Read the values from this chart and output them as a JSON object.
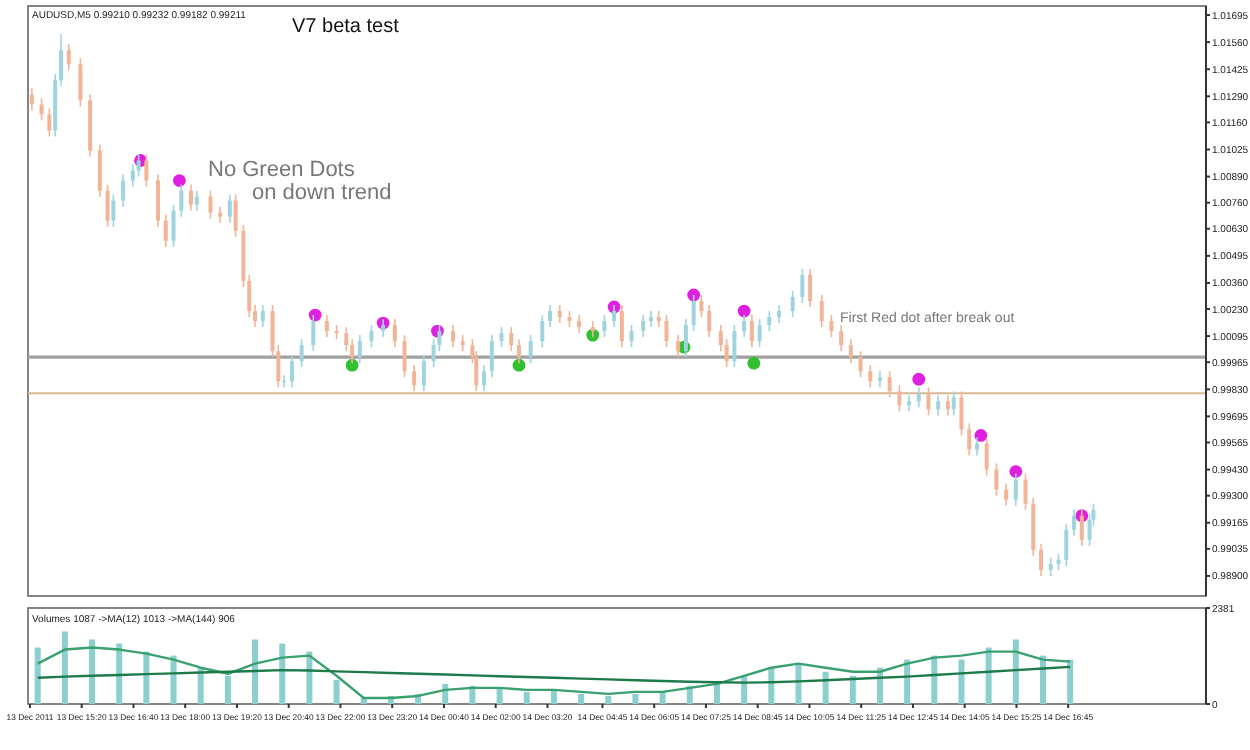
{
  "chart_data": [
    {
      "type": "candlestick",
      "title": "V7 beta test",
      "subtitle": "AUDUSD,M5 0.99210 0.99232 0.99182 0.99211",
      "annotations": [
        "No Green Dots on down trend",
        "First Red dot after break out"
      ],
      "colors": [
        "#f2b497",
        "#f2b497",
        "#f2b497",
        "#9fd3df",
        "#9fd3df",
        "#f2b497",
        "#f2b497",
        "#f2b497",
        "#f2b497",
        "#f2b497",
        "#9fd3df",
        "#9fd3df",
        "#9fd3df",
        "#9fd3df",
        "#f2b497",
        "#f2b497",
        "#f2b497",
        "#9fd3df",
        "#9fd3df",
        "#f2b497",
        "#9fd3df",
        "#f2b497",
        "#f2b497",
        "#9fd3df",
        "#f2b497",
        "#f2b497",
        "#f2b497",
        "#f2b497",
        "#9fd3df",
        "#f2b497",
        "#f2b497",
        "#9fd3df",
        "#9fd3df",
        "#9fd3df",
        "#9fd3df",
        "#f2b497",
        "#f2b497",
        "#f2b497",
        "#f2b497",
        "#9fd3df",
        "#9fd3df",
        "#9fd3df",
        "#f2b497",
        "#f2b497",
        "#f2b497",
        "#9fd3df",
        "#9fd3df",
        "#9fd3df",
        "#f2b497",
        "#f2b497",
        "#f2b497",
        "#f2b497",
        "#9fd3df",
        "#9fd3df",
        "#9fd3df",
        "#f2b497",
        "#f2b497",
        "#9fd3df",
        "#9fd3df",
        "#9fd3df",
        "#f2b497",
        "#f2b497",
        "#f2b497",
        "#f2b497",
        "#9fd3df",
        "#9fd3df",
        "#f2b497",
        "#9fd3df",
        "#9fd3df",
        "#9fd3df",
        "#f2b497",
        "#f2b497",
        "#f2b497",
        "#9fd3df",
        "#9fd3df",
        "#f2b497",
        "#f2b497",
        "#f2b497",
        "#f2b497",
        "#9fd3df",
        "#9fd3df",
        "#f2b497",
        "#9fd3df",
        "#9fd3df",
        "#9fd3df",
        "#9fd3df",
        "#9fd3df",
        "#f2b497",
        "#f2b497",
        "#f2b497",
        "#f2b497",
        "#f2b497",
        "#f2b497",
        "#f2b497",
        "#9fd3df",
        "#f2b497",
        "#f2b497",
        "#9fd3df",
        "#9fd3df",
        "#f2b497",
        "#9fd3df",
        "#f2b497",
        "#9fd3df",
        "#f2b497",
        "#f2b497",
        "#9fd3df",
        "#f2b497",
        "#f2b497",
        "#f2b497",
        "#9fd3df",
        "#f2b497",
        "#f2b497",
        "#f2b497",
        "#9fd3df",
        "#9fd3df",
        "#9fd3df",
        "#9fd3df",
        "#f2b497",
        "#9fd3df",
        "#9fd3df"
      ],
      "x": [
        "2011-12-13T14:03",
        "2011-12-13T14:18",
        "2011-12-13T14:30",
        "2011-12-13T14:39",
        "2011-12-13T14:48",
        "2011-12-13T15:00",
        "2011-12-13T15:18",
        "2011-12-13T15:33",
        "2011-12-13T15:48",
        "2011-12-13T16:00",
        "2011-12-13T16:09",
        "2011-12-13T16:24",
        "2011-12-13T16:39",
        "2011-12-13T16:48",
        "2011-12-13T17:00",
        "2011-12-13T17:18",
        "2011-12-13T17:30",
        "2011-12-13T17:42",
        "2011-12-13T17:54",
        "2011-12-13T18:09",
        "2011-12-13T18:18",
        "2011-12-13T18:39",
        "2011-12-13T18:54",
        "2011-12-13T19:09",
        "2011-12-13T19:18",
        "2011-12-13T19:30",
        "2011-12-13T19:39",
        "2011-12-13T19:48",
        "2011-12-13T20:00",
        "2011-12-13T20:15",
        "2011-12-13T20:24",
        "2011-12-13T20:33",
        "2011-12-13T20:45",
        "2011-12-13T21:00",
        "2011-12-13T21:18",
        "2011-12-13T21:39",
        "2011-12-13T21:54",
        "2011-12-13T22:09",
        "2011-12-13T22:18",
        "2011-12-13T22:30",
        "2011-12-13T22:48",
        "2011-12-13T23:06",
        "2011-12-13T23:24",
        "2011-12-13T23:39",
        "2011-12-13T23:54",
        "2011-12-14T00:09",
        "2011-12-14T00:24",
        "2011-12-14T00:33",
        "2011-12-14T00:54",
        "2011-12-14T01:09",
        "2011-12-14T01:24",
        "2011-12-14T01:30",
        "2011-12-14T01:42",
        "2011-12-14T01:54",
        "2011-12-14T02:09",
        "2011-12-14T02:24",
        "2011-12-14T02:36",
        "2011-12-14T02:54",
        "2011-12-14T03:12",
        "2011-12-14T03:24",
        "2011-12-14T03:39",
        "2011-12-14T03:54",
        "2011-12-14T04:09",
        "2011-12-14T04:30",
        "2011-12-14T04:48",
        "2011-12-14T05:03",
        "2011-12-14T05:15",
        "2011-12-14T05:30",
        "2011-12-14T05:48",
        "2011-12-14T06:00",
        "2011-12-14T06:12",
        "2011-12-14T06:24",
        "2011-12-14T06:42",
        "2011-12-14T06:54",
        "2011-12-14T07:06",
        "2011-12-14T07:18",
        "2011-12-14T07:30",
        "2011-12-14T07:48",
        "2011-12-14T07:57",
        "2011-12-14T08:09",
        "2011-12-14T08:24",
        "2011-12-14T08:36",
        "2011-12-14T08:48",
        "2011-12-14T09:03",
        "2011-12-14T09:18",
        "2011-12-14T09:39",
        "2011-12-14T09:54",
        "2011-12-14T10:06",
        "2011-12-14T10:24",
        "2011-12-14T10:39",
        "2011-12-14T10:54",
        "2011-12-14T11:09",
        "2011-12-14T11:24",
        "2011-12-14T11:39",
        "2011-12-14T11:54",
        "2011-12-14T12:09",
        "2011-12-14T12:24",
        "2011-12-14T12:39",
        "2011-12-14T12:54",
        "2011-12-14T13:09",
        "2011-12-14T13:24",
        "2011-12-14T13:39",
        "2011-12-14T13:48",
        "2011-12-14T14:00",
        "2011-12-14T14:12",
        "2011-12-14T14:24",
        "2011-12-14T14:39",
        "2011-12-14T14:54",
        "2011-12-14T15:09",
        "2011-12-14T15:24",
        "2011-12-14T15:39",
        "2011-12-14T15:51",
        "2011-12-14T16:03",
        "2011-12-14T16:18",
        "2011-12-14T16:30",
        "2011-12-14T16:42",
        "2011-12-14T16:54",
        "2011-12-14T17:06",
        "2011-12-14T17:18",
        "2011-12-14T17:24"
      ],
      "series": [
        {
          "type": "scatter",
          "color": "#e020e0",
          "x": [
            "2011-12-13T16:51",
            "2011-12-13T17:51",
            "2011-12-13T21:21",
            "2011-12-13T23:06",
            "2011-12-14T00:30",
            "2011-12-14T05:03",
            "2011-12-14T07:06",
            "2011-12-14T08:24",
            "2011-12-14T12:54",
            "2011-12-14T14:30",
            "2011-12-14T15:24",
            "2011-12-14T17:06"
          ],
          "values": [
            1.0097,
            1.0087,
            1.002,
            1.0016,
            1.0012,
            1.0024,
            1.003,
            1.0022,
            0.9988,
            0.996,
            0.9942,
            0.992
          ]
        },
        {
          "type": "scatter",
          "color": "#30c030",
          "x": [
            "2011-12-13T22:18",
            "2011-12-14T02:36",
            "2011-12-14T04:30",
            "2011-12-14T06:51",
            "2011-12-14T08:39"
          ],
          "values": [
            0.9995,
            0.9995,
            1.001,
            1.0004,
            0.9996
          ]
        }
      ],
      "xlim": [
        "2011-12-13T13:57",
        "2011-12-14T20:18"
      ],
      "tick_labels": "y",
      "marker": "circle",
      "ref_lines": [
        {
          "axis": "y",
          "value": 0.9999,
          "label": null,
          "color": "#a0a0a0"
        },
        {
          "axis": "y",
          "value": 0.9981,
          "label": null,
          "color": "#d8b890"
        }
      ],
      "ylim": [
        0.988,
        1.0174
      ],
      "yticks": [
        {
          "value": 1.01695,
          "label": "1.01695"
        },
        {
          "value": 1.0156,
          "label": "1.01560"
        },
        {
          "value": 1.01425,
          "label": "1.01425"
        },
        {
          "value": 1.0129,
          "label": "1.01290"
        },
        {
          "value": 1.0116,
          "label": "1.01160"
        },
        {
          "value": 1.01025,
          "label": "1.01025"
        },
        {
          "value": 1.0089,
          "label": "1.00890"
        },
        {
          "value": 1.0076,
          "label": "1.00760"
        },
        {
          "value": 1.0063,
          "label": "1.00630"
        },
        {
          "value": 1.00495,
          "label": "1.00495"
        },
        {
          "value": 1.0036,
          "label": "1.00360"
        },
        {
          "value": 1.0023,
          "label": "1.00230"
        },
        {
          "value": 1.00095,
          "label": "1.00095"
        },
        {
          "value": 0.99965,
          "label": "0.99965"
        },
        {
          "value": 0.9983,
          "label": "0.99830"
        },
        {
          "value": 0.99695,
          "label": "0.99695"
        },
        {
          "value": 0.99565,
          "label": "0.99565"
        },
        {
          "value": 0.9943,
          "label": "0.99430"
        },
        {
          "value": 0.993,
          "label": "0.99300"
        },
        {
          "value": 0.99165,
          "label": "0.99165"
        },
        {
          "value": 0.99035,
          "label": "0.99035"
        },
        {
          "value": 0.989,
          "label": "0.98900"
        }
      ],
      "ohlc": [
        [
          1.013,
          1.0133,
          1.0122,
          1.0125
        ],
        [
          1.0125,
          1.0128,
          1.0117,
          1.012
        ],
        [
          1.012,
          1.0123,
          1.0109,
          1.0112
        ],
        [
          1.0112,
          1.014,
          1.0109,
          1.0137
        ],
        [
          1.0137,
          1.016,
          1.0134,
          1.0152
        ],
        [
          1.0152,
          1.0155,
          1.0142,
          1.0145
        ],
        [
          1.0145,
          1.0148,
          1.0124,
          1.0127
        ],
        [
          1.0127,
          1.013,
          1.0099,
          1.0102
        ],
        [
          1.0102,
          1.0105,
          1.0079,
          1.0082
        ],
        [
          1.0082,
          1.0085,
          1.0064,
          1.0067
        ],
        [
          1.0067,
          1.008,
          1.0064,
          1.0077
        ],
        [
          1.0077,
          1.009,
          1.0074,
          1.0087
        ],
        [
          1.0087,
          1.0095,
          1.0084,
          1.0092
        ],
        [
          1.0092,
          1.01,
          1.0089,
          1.0097
        ],
        [
          1.0097,
          1.01,
          1.0084,
          1.0087
        ],
        [
          1.0087,
          1.009,
          1.0064,
          1.0067
        ],
        [
          1.0067,
          1.007,
          1.0054,
          1.0057
        ],
        [
          1.0057,
          1.0075,
          1.0054,
          1.0072
        ],
        [
          1.0072,
          1.0085,
          1.0069,
          1.0082
        ],
        [
          1.0082,
          1.0085,
          1.0072,
          1.0075
        ],
        [
          1.0075,
          1.0082,
          1.0072,
          1.0079
        ],
        [
          1.0079,
          1.0082,
          1.0068,
          1.0071
        ],
        [
          1.0071,
          1.0074,
          1.0066,
          1.0069
        ],
        [
          1.0069,
          1.008,
          1.0066,
          1.0077
        ],
        [
          1.0077,
          1.008,
          1.0059,
          1.0062
        ],
        [
          1.0062,
          1.0065,
          1.0034,
          1.0037
        ],
        [
          1.0037,
          1.004,
          1.0019,
          1.0022
        ],
        [
          1.0022,
          1.0025,
          1.0014,
          1.0017
        ],
        [
          1.0017,
          1.0025,
          1.0014,
          1.0022
        ],
        [
          1.0022,
          1.0025,
          0.9999,
          1.0002
        ],
        [
          1.0002,
          1.0005,
          0.9984,
          0.9987
        ],
        [
          0.9987,
          0.999,
          0.9984,
          0.9987
        ],
        [
          0.9987,
          1.0,
          0.9984,
          0.9997
        ],
        [
          0.9997,
          1.0008,
          0.9994,
          1.0005
        ],
        [
          1.0005,
          1.002,
          1.0002,
          1.0017
        ],
        [
          1.0017,
          1.002,
          1.0009,
          1.0012
        ],
        [
          1.0012,
          1.0015,
          1.0008,
          1.0011
        ],
        [
          1.0011,
          1.0014,
          1.0002,
          1.0005
        ],
        [
          1.0005,
          1.0008,
          0.9996,
          0.9999
        ],
        [
          0.9999,
          1.001,
          0.9996,
          1.0007
        ],
        [
          1.0007,
          1.0015,
          1.0004,
          1.0012
        ],
        [
          1.0012,
          1.0018,
          1.0009,
          1.0015
        ],
        [
          1.0015,
          1.0018,
          1.0004,
          1.0007
        ],
        [
          1.0007,
          1.001,
          0.9989,
          0.9992
        ],
        [
          0.9992,
          0.9995,
          0.9982,
          0.9985
        ],
        [
          0.9985,
          1.0,
          0.9982,
          0.9997
        ],
        [
          0.9997,
          1.0008,
          0.9994,
          1.0005
        ],
        [
          1.0005,
          1.0015,
          1.0002,
          1.0012
        ],
        [
          1.0012,
          1.0015,
          1.0004,
          1.0007
        ],
        [
          1.0007,
          1.001,
          1.0002,
          1.0005
        ],
        [
          1.0005,
          1.0008,
          0.9996,
          0.9999
        ],
        [
          0.9999,
          1.0002,
          0.9982,
          0.9985
        ],
        [
          0.9985,
          0.9995,
          0.9982,
          0.9992
        ],
        [
          0.9992,
          1.001,
          0.9989,
          1.0007
        ],
        [
          1.0007,
          1.0014,
          1.0004,
          1.0011
        ],
        [
          1.0011,
          1.0014,
          1.0002,
          1.0005
        ],
        [
          1.0005,
          1.0008,
          0.9996,
          0.9999
        ],
        [
          0.9999,
          1.001,
          0.9996,
          1.0007
        ],
        [
          1.0007,
          1.002,
          1.0004,
          1.0017
        ],
        [
          1.0017,
          1.0025,
          1.0014,
          1.0022
        ],
        [
          1.0022,
          1.0025,
          1.0016,
          1.0019
        ],
        [
          1.0019,
          1.0022,
          1.0014,
          1.0017
        ],
        [
          1.0017,
          1.002,
          1.0011,
          1.0014
        ],
        [
          1.0014,
          1.0017,
          1.0009,
          1.0012
        ],
        [
          1.0012,
          1.002,
          1.0009,
          1.0017
        ],
        [
          1.0017,
          1.0025,
          1.0014,
          1.0022
        ],
        [
          1.0022,
          1.0025,
          1.0004,
          1.0007
        ],
        [
          1.0007,
          1.0015,
          1.0004,
          1.0012
        ],
        [
          1.0012,
          1.002,
          1.0009,
          1.0017
        ],
        [
          1.0017,
          1.0022,
          1.0014,
          1.0019
        ],
        [
          1.0019,
          1.0022,
          1.0014,
          1.0017
        ],
        [
          1.0017,
          1.002,
          1.0004,
          1.0007
        ],
        [
          1.0007,
          1.001,
          0.9999,
          1.0002
        ],
        [
          1.0002,
          1.0018,
          0.9999,
          1.0015
        ],
        [
          1.0015,
          1.003,
          1.0012,
          1.0027
        ],
        [
          1.0027,
          1.003,
          1.0019,
          1.0022
        ],
        [
          1.0022,
          1.0025,
          1.0009,
          1.0012
        ],
        [
          1.0012,
          1.0015,
          1.0002,
          1.0005
        ],
        [
          1.0005,
          1.0008,
          0.9994,
          0.9997
        ],
        [
          0.9997,
          1.0015,
          0.9994,
          1.0012
        ],
        [
          1.0012,
          1.002,
          1.0009,
          1.0017
        ],
        [
          1.0017,
          1.002,
          1.0004,
          1.0007
        ],
        [
          1.0007,
          1.0018,
          1.0004,
          1.0015
        ],
        [
          1.0015,
          1.0022,
          1.0012,
          1.0019
        ],
        [
          1.0019,
          1.0025,
          1.0016,
          1.0022
        ],
        [
          1.0022,
          1.0032,
          1.0019,
          1.0029
        ],
        [
          1.0029,
          1.0043,
          1.0026,
          1.004
        ],
        [
          1.004,
          1.0043,
          1.0024,
          1.0027
        ],
        [
          1.0027,
          1.003,
          1.0014,
          1.0017
        ],
        [
          1.0017,
          1.002,
          1.0009,
          1.0012
        ],
        [
          1.0012,
          1.0015,
          1.0002,
          1.0005
        ],
        [
          1.0005,
          1.0008,
          0.9996,
          0.9999
        ],
        [
          0.9999,
          1.0002,
          0.9989,
          0.9992
        ],
        [
          0.9992,
          0.9995,
          0.9984,
          0.9987
        ],
        [
          0.9987,
          0.9992,
          0.9984,
          0.9989
        ],
        [
          0.9989,
          0.9992,
          0.9979,
          0.9982
        ],
        [
          0.9982,
          0.9985,
          0.9972,
          0.9975
        ],
        [
          0.9975,
          0.998,
          0.9972,
          0.9977
        ],
        [
          0.9977,
          0.9984,
          0.9974,
          0.9981
        ],
        [
          0.9981,
          0.9984,
          0.997,
          0.9973
        ],
        [
          0.9973,
          0.998,
          0.997,
          0.9977
        ],
        [
          0.9977,
          0.998,
          0.997,
          0.9973
        ],
        [
          0.9973,
          0.9982,
          0.997,
          0.9979
        ],
        [
          0.9979,
          0.9982,
          0.996,
          0.9963
        ],
        [
          0.9963,
          0.9966,
          0.995,
          0.9953
        ],
        [
          0.9953,
          0.9959,
          0.995,
          0.9956
        ],
        [
          0.9956,
          0.9959,
          0.994,
          0.9943
        ],
        [
          0.9943,
          0.9946,
          0.993,
          0.9933
        ],
        [
          0.9933,
          0.9936,
          0.9925,
          0.9928
        ],
        [
          0.9928,
          0.9941,
          0.9925,
          0.9938
        ],
        [
          0.9938,
          0.9941,
          0.9923,
          0.9926
        ],
        [
          0.9926,
          0.9929,
          0.99,
          0.9903
        ],
        [
          0.9903,
          0.9906,
          0.989,
          0.9893
        ],
        [
          0.9893,
          0.9899,
          0.989,
          0.9896
        ],
        [
          0.9896,
          0.9901,
          0.9893,
          0.9898
        ],
        [
          0.9898,
          0.9916,
          0.9895,
          0.9913
        ],
        [
          0.9913,
          0.9923,
          0.991,
          0.992
        ],
        [
          0.992,
          0.9923,
          0.9905,
          0.9908
        ],
        [
          0.9908,
          0.9921,
          0.9905,
          0.9918
        ],
        [
          0.9918,
          0.9926,
          0.9915,
          0.9923
        ]
      ]
    },
    {
      "type": "bar",
      "title": "Volumes 1087 ->MA(12) 1013 ->MA(144) 906",
      "x": [
        "2011-12-13T14:12",
        "2011-12-13T14:54",
        "2011-12-13T15:36",
        "2011-12-13T16:18",
        "2011-12-13T17:00",
        "2011-12-13T17:42",
        "2011-12-13T18:24",
        "2011-12-13T19:06",
        "2011-12-13T19:48",
        "2011-12-13T20:30",
        "2011-12-13T21:12",
        "2011-12-13T21:54",
        "2011-12-13T22:36",
        "2011-12-13T23:18",
        "2011-12-14T00:00",
        "2011-12-14T00:42",
        "2011-12-14T01:24",
        "2011-12-14T02:06",
        "2011-12-14T02:48",
        "2011-12-14T03:30",
        "2011-12-14T04:12",
        "2011-12-14T04:54",
        "2011-12-14T05:36",
        "2011-12-14T06:18",
        "2011-12-14T07:00",
        "2011-12-14T07:42",
        "2011-12-14T08:24",
        "2011-12-14T09:06",
        "2011-12-14T09:48",
        "2011-12-14T10:30",
        "2011-12-14T11:12",
        "2011-12-14T11:54",
        "2011-12-14T12:36",
        "2011-12-14T13:18",
        "2011-12-14T14:00",
        "2011-12-14T14:42",
        "2011-12-14T15:24",
        "2011-12-14T16:06",
        "2011-12-14T16:48"
      ],
      "series": [
        {
          "type": "bar",
          "color": "#8ccfcf",
          "values": [
            1400,
            1800,
            1600,
            1500,
            1300,
            1200,
            900,
            700,
            1600,
            1500,
            1300,
            600,
            150,
            200,
            250,
            500,
            450,
            400,
            300,
            350,
            250,
            200,
            250,
            300,
            450,
            500,
            700,
            900,
            1000,
            800,
            700,
            900,
            1100,
            1200,
            1100,
            1400,
            1600,
            1200,
            1100
          ]
        },
        {
          "type": "line",
          "color": "#3aa070",
          "values": [
            1000,
            1350,
            1400,
            1350,
            1250,
            1100,
            900,
            750,
            1000,
            1150,
            1200,
            700,
            150,
            150,
            200,
            350,
            400,
            400,
            350,
            350,
            300,
            250,
            300,
            300,
            400,
            500,
            700,
            900,
            1000,
            900,
            800,
            800,
            1000,
            1150,
            1200,
            1300,
            1300,
            1100,
            1050
          ]
        },
        {
          "type": "line",
          "color": "#1d7a4a",
          "values": [
            650,
            680,
            700,
            720,
            740,
            760,
            780,
            800,
            820,
            840,
            830,
            810,
            790,
            770,
            750,
            730,
            710,
            690,
            670,
            650,
            630,
            610,
            590,
            570,
            550,
            540,
            530,
            540,
            560,
            590,
            620,
            650,
            680,
            720,
            760,
            800,
            840,
            880,
            920
          ]
        }
      ],
      "xlim": [
        "2011-12-13T13:57",
        "2011-12-14T20:18"
      ],
      "ylim": [
        0,
        2381
      ],
      "yticks": [
        0,
        2381
      ],
      "xticks": [
        {
          "value": "2011-12-13T14:00",
          "label": "13 Dec 2011"
        },
        {
          "value": "2011-12-13T15:20",
          "label": "13 Dec 15:20"
        },
        {
          "value": "2011-12-13T16:40",
          "label": "13 Dec 16:40"
        },
        {
          "value": "2011-12-13T18:00",
          "label": "13 Dec 18:00"
        },
        {
          "value": "2011-12-13T19:20",
          "label": "13 Dec 19:20"
        },
        {
          "value": "2011-12-13T20:40",
          "label": "13 Dec 20:40"
        },
        {
          "value": "2011-12-13T22:00",
          "label": "13 Dec 22:00"
        },
        {
          "value": "2011-12-13T23:20",
          "label": "13 Dec 23:20"
        },
        {
          "value": "2011-12-14T00:40",
          "label": "14 Dec 00:40"
        },
        {
          "value": "2011-12-14T02:00",
          "label": "14 Dec 02:00"
        },
        {
          "value": "2011-12-14T03:20",
          "label": "14 Dec 03:20"
        },
        {
          "value": "2011-12-14T04:45",
          "label": "14 Dec 04:45"
        },
        {
          "value": "2011-12-14T06:05",
          "label": "14 Dec 06:05"
        },
        {
          "value": "2011-12-14T07:25",
          "label": "14 Dec 07:25"
        },
        {
          "value": "2011-12-14T08:45",
          "label": "14 Dec 08:45"
        },
        {
          "value": "2011-12-14T10:05",
          "label": "14 Dec 10:05"
        },
        {
          "value": "2011-12-14T11:25",
          "label": "14 Dec 11:25"
        },
        {
          "value": "2011-12-14T12:45",
          "label": "14 Dec 12:45"
        },
        {
          "value": "2011-12-14T14:05",
          "label": "14 Dec 14:05"
        },
        {
          "value": "2011-12-14T15:25",
          "label": "14 Dec 15:25"
        },
        {
          "value": "2011-12-14T16:45",
          "label": "14 Dec 16:45"
        }
      ]
    }
  ]
}
